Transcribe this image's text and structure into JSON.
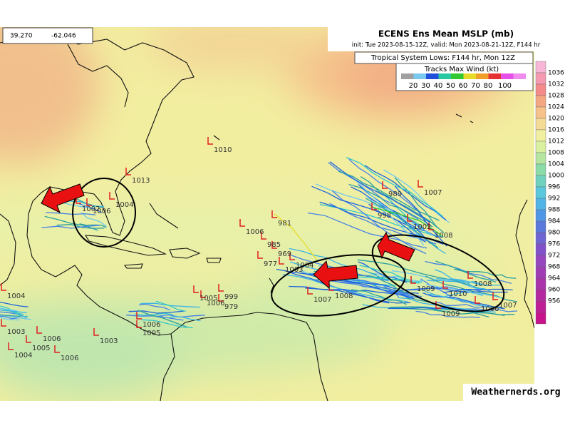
{
  "coords": {
    "lat": "39.270",
    "lon": "-62.046"
  },
  "header": {
    "title": "ECENS Ens Mean MSLP (mb)",
    "subtitle": "init: Tue 2023-08-15-12Z, valid: Mon 2023-08-21-12Z, F144 hr"
  },
  "legend": {
    "systems_title": "Tropical System Lows: F144 hr, Mon 12Z",
    "wind_title": "Tracks Max Wind (kt)",
    "wind_labels": [
      "20",
      "30",
      "40",
      "50",
      "60",
      "70",
      "80",
      "100"
    ]
  },
  "colorbar": {
    "labels": [
      "1036",
      "1032",
      "1028",
      "1024",
      "1020",
      "1016",
      "1012",
      "1008",
      "1004",
      "1000",
      "996",
      "992",
      "988",
      "984",
      "980",
      "976",
      "972",
      "968",
      "964",
      "960",
      "956"
    ]
  },
  "map_labels": [
    "1010",
    "1013",
    "989",
    "1007",
    "981",
    "1006",
    "985",
    "969",
    "977",
    "1003",
    "1004",
    "998",
    "1002",
    "1008",
    "1009",
    "1007",
    "1008",
    "1007",
    "1009",
    "1006",
    "1010",
    "1008",
    "1004",
    "1003",
    "1006",
    "1005",
    "1004",
    "1006",
    "1003",
    "1006",
    "1005",
    "979",
    "999",
    "1006",
    "1005",
    "1002",
    "1006",
    "1004"
  ],
  "credit": "Weathernerds.org"
}
